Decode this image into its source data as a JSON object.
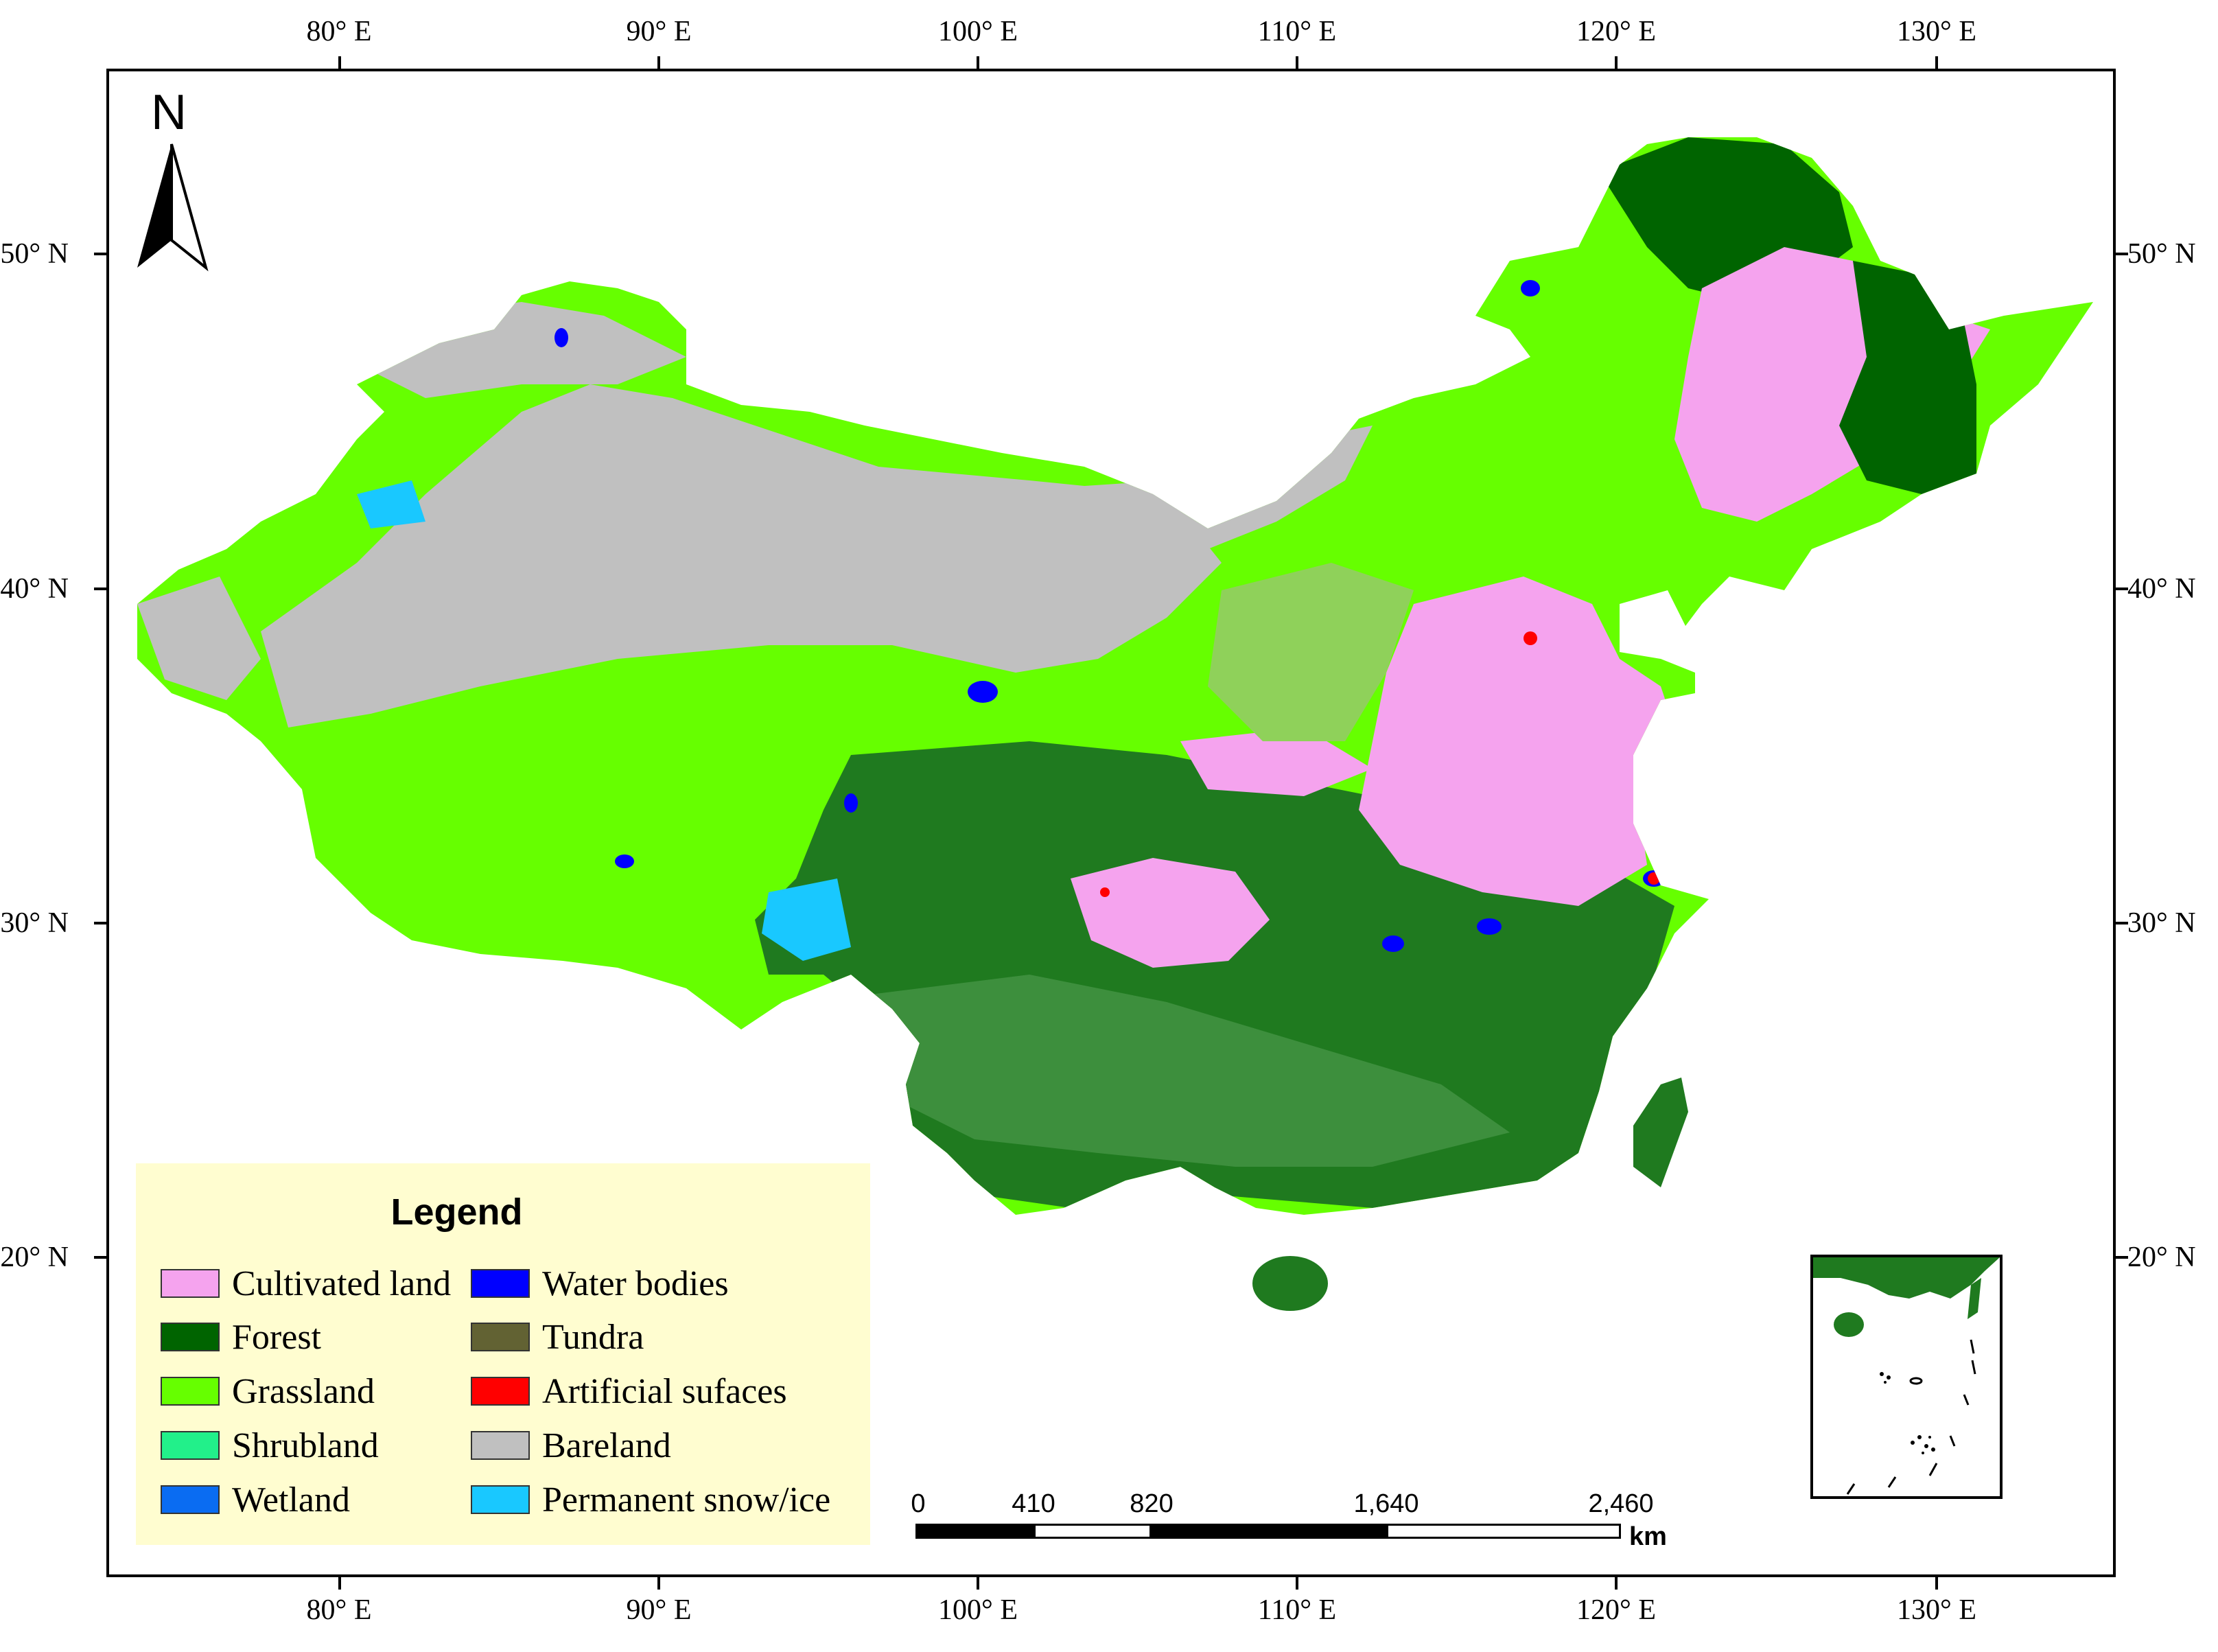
{
  "axes": {
    "longitude_ticks": [
      "80° E",
      "90° E",
      "100° E",
      "110° E",
      "120° E",
      "130° E"
    ],
    "latitude_ticks": [
      "50° N",
      "40° N",
      "30° N",
      "20° N"
    ]
  },
  "north_arrow": {
    "label": "N"
  },
  "legend": {
    "title": "Legend",
    "items": [
      {
        "label": "Cultivated land",
        "color": "#f5a3ee"
      },
      {
        "label": "Forest",
        "color": "#006400"
      },
      {
        "label": "Grassland",
        "color": "#66ff00"
      },
      {
        "label": "Shrubland",
        "color": "#22f08a"
      },
      {
        "label": "Wetland",
        "color": "#0a6cf2"
      },
      {
        "label": "Water bodies",
        "color": "#0000ff"
      },
      {
        "label": "Tundra",
        "color": "#626233"
      },
      {
        "label": "Artificial sufaces",
        "color": "#ff0000"
      },
      {
        "label": "Bareland",
        "color": "#c0c0c0"
      },
      {
        "label": "Permanent snow/ice",
        "color": "#19c8ff"
      }
    ]
  },
  "scale_bar": {
    "ticks": [
      "0",
      "410",
      "820",
      "1,640",
      "2,460"
    ],
    "unit": "km"
  },
  "map_colors": {
    "bareland": "#c0c0c0",
    "grassland": "#66ff00",
    "forest": "#1f7a1f",
    "forest_dark": "#006400",
    "cultivated": "#f5a3ee",
    "water": "#0000ff",
    "snow": "#19c8ff",
    "mixed_green": "#3d8f3d"
  }
}
